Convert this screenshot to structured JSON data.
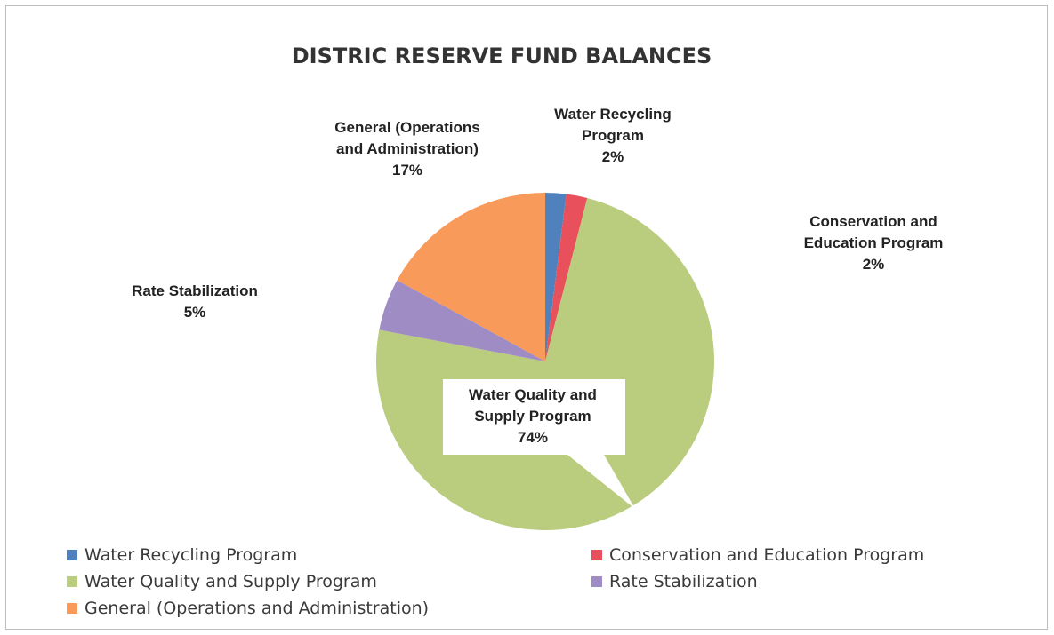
{
  "chart_data": {
    "type": "pie",
    "title": "DISTRIC RESERVE FUND BALANCES",
    "slices": [
      {
        "label": "Water Recycling Program",
        "value": 2,
        "percent_label": "2%",
        "color": "#4F81BD",
        "legend_label": "Water Recycling Program"
      },
      {
        "label": "Conservation and Education Program",
        "value": 2,
        "percent_label": "2%",
        "color": "#E8505B",
        "legend_label": "Conservation and Education Program"
      },
      {
        "label": "Water Quality and Supply Program",
        "value": 74,
        "percent_label": "74%",
        "color": "#BACD7E",
        "legend_label": "Water Quality and Supply Program"
      },
      {
        "label": "Rate Stabilization",
        "value": 5,
        "percent_label": "5%",
        "color": "#A08CC4",
        "legend_label": "Rate Stabilization"
      },
      {
        "label": "General (Operations and Administration)",
        "value": 17,
        "percent_label": "17%",
        "color": "#F79A5A",
        "legend_label": "General (Operations and Administration)"
      }
    ],
    "data_label_lines": [
      [
        "Water Recycling",
        "Program",
        "2%"
      ],
      [
        "Conservation and",
        "Education Program",
        "2%"
      ],
      [
        "Water Quality and",
        "Supply Program",
        "74%"
      ],
      [
        "Rate Stabilization",
        "5%"
      ],
      [
        "General (Operations",
        "and Administration)",
        "17%"
      ]
    ],
    "legend_position": "bottom",
    "start_angle": "12 o'clock",
    "direction": "clockwise"
  }
}
